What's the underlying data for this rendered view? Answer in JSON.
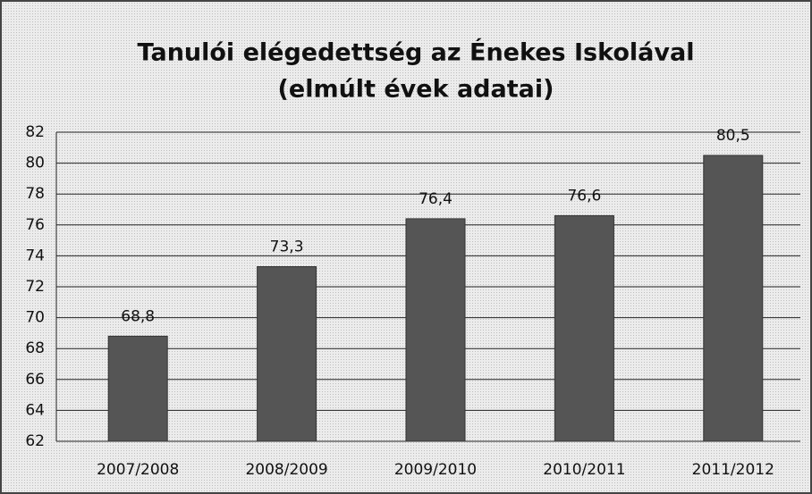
{
  "chart_data": {
    "type": "bar",
    "title": [
      "Tanulói elégedettség az Énekes Iskolával",
      "(elmúlt évek adatai)"
    ],
    "categories": [
      "2007/2008",
      "2008/2009",
      "2009/2010",
      "2010/2011",
      "2011/2012"
    ],
    "values": [
      68.8,
      73.3,
      76.4,
      76.6,
      80.5
    ],
    "value_labels": [
      "68,8",
      "73,3",
      "76,4",
      "76,6",
      "80,5"
    ],
    "color": "#555555",
    "ylim": [
      62,
      82
    ],
    "yticks": [
      62,
      64,
      66,
      68,
      70,
      72,
      74,
      76,
      78,
      80,
      82
    ],
    "grid": true
  }
}
